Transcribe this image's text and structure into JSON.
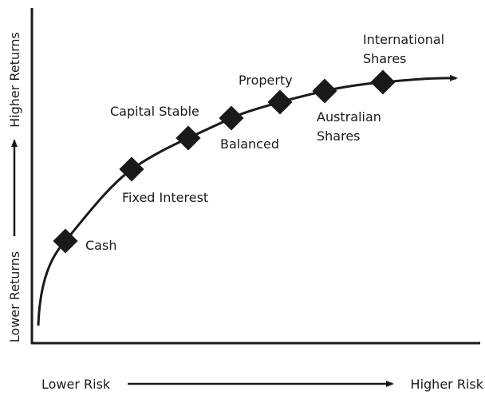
{
  "nodes": [
    {
      "lines": [
        "Cash"
      ]
    },
    {
      "lines": [
        "Fixed Interest"
      ]
    },
    {
      "lines": [
        "Capital Stable"
      ]
    },
    {
      "lines": [
        "Balanced"
      ]
    },
    {
      "lines": [
        "Property"
      ]
    },
    {
      "lines": [
        "Australian",
        "Shares"
      ]
    },
    {
      "lines": [
        "International",
        "Shares"
      ]
    }
  ],
  "x_axis": {
    "low": "Lower Risk",
    "high": "Higher Risk"
  },
  "y_axis": {
    "low": "Lower Returns",
    "high": "Higher Returns"
  }
}
